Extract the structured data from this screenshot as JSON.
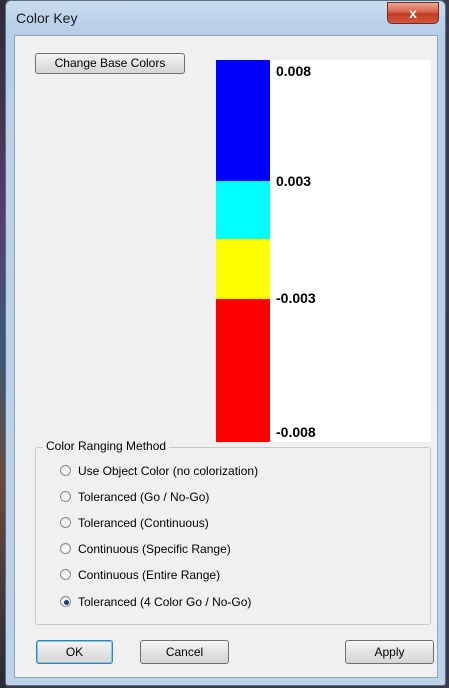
{
  "window": {
    "title": "Color Key",
    "close_label": "x"
  },
  "toolbar": {
    "change_base_colors_label": "Change Base Colors"
  },
  "color_key": {
    "bands": [
      {
        "color": "#0000ff"
      },
      {
        "color": "#00ffff"
      },
      {
        "color": "#ffff00"
      },
      {
        "color": "#ff0000"
      }
    ],
    "labels": [
      "0.008",
      "0.003",
      "-0.003",
      "-0.008"
    ]
  },
  "ranging": {
    "title": "Color Ranging Method",
    "options": [
      {
        "label": "Use Object Color (no colorization)",
        "selected": false
      },
      {
        "label": "Toleranced (Go / No-Go)",
        "selected": false
      },
      {
        "label": "Toleranced (Continuous)",
        "selected": false
      },
      {
        "label": "Continuous (Specific Range)",
        "selected": false
      },
      {
        "label": "Continuous (Entire Range)",
        "selected": false
      },
      {
        "label": "Toleranced (4 Color Go / No-Go)",
        "selected": true
      }
    ]
  },
  "footer": {
    "ok_label": "OK",
    "cancel_label": "Cancel",
    "apply_label": "Apply"
  }
}
